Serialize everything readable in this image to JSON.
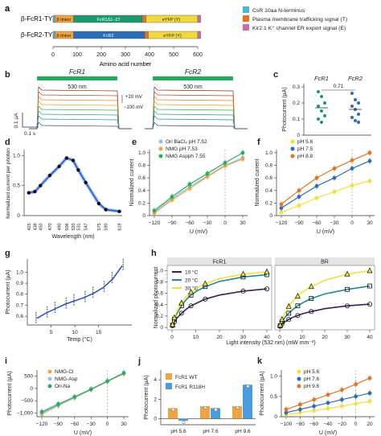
{
  "panels": {
    "a": {
      "letter": "a",
      "construct1": "β-FcR1-TYE",
      "construct2": "β-FcR2-TYE",
      "blocks1": [
        "β-linker",
        "FcR1Δ1–27",
        "eYFP (Y)"
      ],
      "blocks2": [
        "β-linker",
        "FcR2",
        "eYFP (Y)"
      ],
      "axis_ticks": [
        "0",
        "100",
        "200",
        "300",
        "400",
        "500",
        "600"
      ],
      "axis_label": "Amino acid number",
      "legend": [
        {
          "label": "CsR 10aa N-terminus",
          "color": "#4ab5d6"
        },
        {
          "label": "Plasma membrane trafficking signal (T)",
          "color": "#e8711f"
        },
        {
          "label": "Kir2.1 K⁺ channel ER export signal (E)",
          "color": "#d16aa9"
        }
      ],
      "colors": {
        "linker": "#f2a33a",
        "fcr1": "#1a9a6f",
        "fcr2": "#2a6eb8",
        "eyfp": "#f0d93c"
      }
    },
    "b": {
      "letter": "b",
      "title1": "FcR1",
      "title2": "FcR2",
      "light1": "530 nm",
      "light2": "530 nm",
      "scale_y": "0.1 µA",
      "scale_x": "0.1 s",
      "v_top": "+20 mV",
      "v_bottom": "−100 mV",
      "trace_colors": [
        "#7b2d26",
        "#c0392b",
        "#e67e22",
        "#f39c12",
        "#27ae60",
        "#16a085",
        "#2980b9",
        "#34495e"
      ]
    },
    "c": {
      "letter": "c",
      "title1": "FcR1",
      "title2": "FcR2",
      "ylabel": "Photocurrent (µA)",
      "pval": "0.71",
      "yticks": [
        "0",
        "0.1",
        "0.2",
        "0.3"
      ]
    },
    "d": {
      "letter": "d",
      "xlabel": "Wavelength (nm)",
      "ylabel": "Normalized current per photon",
      "yticks": [
        "0",
        "0.5",
        "1.0"
      ]
    },
    "e": {
      "letter": "e",
      "xlabel": "U (mV)",
      "ylabel": "Normalized current",
      "xticks": [
        "−120",
        "−90",
        "−60",
        "−30",
        "0",
        "30"
      ],
      "yticks": [
        "0",
        "0.2",
        "0.4",
        "0.6",
        "0.8",
        "1.0"
      ]
    },
    "f": {
      "letter": "f",
      "xlabel": "U (mV)",
      "ylabel": "Normalized current",
      "xticks": [
        "−120",
        "−90",
        "−60",
        "−30",
        "0",
        "30"
      ],
      "yticks": [
        "0",
        "0.2",
        "0.4",
        "0.6",
        "0.8",
        "1.0"
      ]
    },
    "g": {
      "letter": "g",
      "xlabel": "Temp (°C)",
      "ylabel": "Photocurrent (µA)",
      "xticks": [
        "5",
        "10",
        "15"
      ],
      "yticks": [
        "0.6",
        "0.7",
        "0.8",
        "0.9",
        "1.0"
      ]
    },
    "h": {
      "letter": "h",
      "title1": "FcR1",
      "title2": "BR",
      "xlabel": "Light intensity (532 nm) (mW mm⁻²)",
      "ylabel": "Normalized photocurrent",
      "xticks": [
        "0",
        "10",
        "20",
        "30",
        "40"
      ],
      "yticks": [
        "0",
        "0.2",
        "0.4",
        "0.6",
        "0.8",
        "1.0"
      ]
    },
    "i": {
      "letter": "i",
      "xlabel": "U (mV)",
      "ylabel": "Photocurrent (µA)",
      "xticks": [
        "−120",
        "−90",
        "−60",
        "−30",
        "0",
        "30"
      ],
      "yticks": [
        "−1,000",
        "−500",
        "0",
        "500"
      ]
    },
    "j": {
      "letter": "j",
      "ylabel": "Photocurrent (µA)",
      "yticks": [
        "0",
        "2",
        "4"
      ]
    },
    "k": {
      "letter": "k",
      "xlabel": "U (mV)",
      "ylabel": "Photocurrent (µA)",
      "xticks": [
        "−100",
        "−80",
        "−60",
        "−40",
        "−20",
        "0",
        "20"
      ],
      "yticks": [
        "0",
        "0.5",
        "1.0"
      ]
    }
  },
  "chart_data": [
    {
      "panel": "c",
      "type": "scatter",
      "categories": [
        "FcR1",
        "FcR2"
      ],
      "series": [
        {
          "name": "FcR1",
          "color": "#1a9a6f",
          "values": [
            0.27,
            0.24,
            0.2,
            0.18,
            0.15,
            0.12,
            0.1,
            0.08
          ],
          "mean": 0.17
        },
        {
          "name": "FcR2",
          "color": "#2a6eb8",
          "values": [
            0.26,
            0.22,
            0.2,
            0.18,
            0.16,
            0.13,
            0.11,
            0.09,
            0.08
          ],
          "mean": 0.16
        }
      ],
      "ylim": [
        0,
        0.32
      ]
    },
    {
      "panel": "d",
      "type": "line",
      "x": [
        425,
        438,
        450,
        470,
        490,
        506,
        520,
        531,
        547,
        575,
        590,
        619
      ],
      "y": [
        0.38,
        0.4,
        0.5,
        0.67,
        0.82,
        0.96,
        0.92,
        0.76,
        0.55,
        0.2,
        0.1,
        0.07
      ],
      "ylim": [
        0,
        1.1
      ],
      "color": "#1f4fd1"
    },
    {
      "panel": "e",
      "type": "line",
      "x": [
        -120,
        -90,
        -60,
        -30,
        0,
        30
      ],
      "series": [
        {
          "name": "Ori BaCl₂ pH 7.52",
          "color": "#8fc1e8",
          "values": [
            0.06,
            0.27,
            0.46,
            0.63,
            0.8,
            0.92
          ]
        },
        {
          "name": "NMG pH 7.53",
          "color": "#f0a340",
          "values": [
            0.04,
            0.25,
            0.43,
            0.62,
            0.79,
            0.9
          ]
        },
        {
          "name": "NMG Aspph 7.55",
          "color": "#27ae60",
          "values": [
            0.08,
            0.3,
            0.5,
            0.67,
            0.84,
            1.0
          ]
        }
      ],
      "ylim": [
        0,
        1.05
      ]
    },
    {
      "panel": "f",
      "type": "line",
      "x": [
        -120,
        -90,
        -60,
        -30,
        0,
        30
      ],
      "series": [
        {
          "name": "pH 5.6",
          "color": "#f3e03a",
          "values": [
            0.05,
            0.16,
            0.28,
            0.38,
            0.48,
            0.55
          ]
        },
        {
          "name": "pH 7.5",
          "color": "#2a6eb8",
          "values": [
            0.12,
            0.3,
            0.47,
            0.6,
            0.75,
            0.87
          ]
        },
        {
          "name": "pH 8.8",
          "color": "#e8711f",
          "values": [
            0.18,
            0.4,
            0.6,
            0.75,
            0.88,
            1.0
          ]
        }
      ],
      "ylim": [
        0,
        1.05
      ]
    },
    {
      "panel": "g",
      "type": "scatter",
      "x": [
        2,
        4,
        6,
        8,
        10,
        12,
        14,
        16,
        18,
        20
      ],
      "y": [
        0.58,
        0.63,
        0.67,
        0.71,
        0.74,
        0.77,
        0.81,
        0.86,
        0.94,
        1.06
      ],
      "ylim": [
        0.52,
        1.12
      ],
      "color": "#1f4fd1"
    },
    {
      "panel": "h",
      "type": "line",
      "x": [
        0.2,
        0.5,
        1,
        2,
        4,
        6,
        8,
        10,
        14,
        20,
        30,
        40
      ],
      "groups": [
        {
          "name": "FcR1",
          "series": [
            {
              "name": "10 °C",
              "color": "#3d1f5c",
              "values": [
                0.03,
                0.06,
                0.1,
                0.16,
                0.25,
                0.32,
                0.38,
                0.42,
                0.5,
                0.57,
                0.64,
                0.68
              ]
            },
            {
              "name": "20 °C",
              "color": "#1b8a9c",
              "values": [
                0.04,
                0.08,
                0.14,
                0.24,
                0.38,
                0.49,
                0.57,
                0.63,
                0.72,
                0.81,
                0.89,
                0.93
              ]
            },
            {
              "name": "30 °C",
              "color": "#f3e03a",
              "values": [
                0.05,
                0.1,
                0.17,
                0.28,
                0.43,
                0.54,
                0.62,
                0.68,
                0.77,
                0.86,
                0.94,
                0.98
              ]
            }
          ]
        },
        {
          "name": "BR",
          "series": [
            {
              "name": "10 °C",
              "color": "#3d1f5c",
              "values": [
                0.02,
                0.04,
                0.06,
                0.09,
                0.14,
                0.18,
                0.21,
                0.24,
                0.28,
                0.33,
                0.38,
                0.41
              ]
            },
            {
              "name": "20 °C",
              "color": "#1b8a9c",
              "values": [
                0.03,
                0.06,
                0.1,
                0.16,
                0.25,
                0.32,
                0.38,
                0.43,
                0.51,
                0.59,
                0.67,
                0.73
              ]
            },
            {
              "name": "30 °C",
              "color": "#f3e03a",
              "values": [
                0.04,
                0.08,
                0.14,
                0.23,
                0.37,
                0.47,
                0.55,
                0.62,
                0.72,
                0.83,
                0.94,
                1.0
              ]
            }
          ]
        }
      ],
      "ylim": [
        0,
        1.05
      ],
      "xlim": [
        0,
        40
      ]
    },
    {
      "panel": "i",
      "type": "line",
      "x": [
        -120,
        -90,
        -60,
        -30,
        0,
        30
      ],
      "series": [
        {
          "name": "NMG-Cl",
          "color": "#f0a340",
          "values": [
            -1050,
            -700,
            -380,
            -50,
            280,
            600
          ]
        },
        {
          "name": "NMG-Asp",
          "color": "#8fc1e8",
          "values": [
            -1000,
            -680,
            -360,
            -40,
            290,
            620
          ]
        },
        {
          "name": "Ori-Na",
          "color": "#27ae60",
          "values": [
            -950,
            -640,
            -340,
            -30,
            300,
            630
          ]
        }
      ],
      "ylim": [
        -1150,
        750
      ]
    },
    {
      "panel": "j",
      "type": "bar",
      "categories": [
        "pH 5.6",
        "pH 7.6",
        "pH 9.6"
      ],
      "series": [
        {
          "name": "FcR1 WT",
          "color": "#f0a340",
          "values": [
            1.1,
            1.3,
            1.3
          ]
        },
        {
          "name": "FcR1 R118H",
          "color": "#4a9ee0",
          "values": [
            -0.2,
            1.1,
            3.5
          ]
        }
      ],
      "ylim": [
        -0.6,
        5
      ]
    },
    {
      "panel": "k",
      "type": "line",
      "x": [
        -100,
        -80,
        -60,
        -40,
        -20,
        0,
        20
      ],
      "series": [
        {
          "name": "pH 5.6",
          "color": "#f3e03a",
          "values": [
            0.05,
            0.1,
            0.15,
            0.2,
            0.26,
            0.32,
            0.38
          ]
        },
        {
          "name": "pH 7.6",
          "color": "#2a6eb8",
          "values": [
            0.1,
            0.18,
            0.26,
            0.34,
            0.42,
            0.5,
            0.58
          ]
        },
        {
          "name": "pH 9.6",
          "color": "#e8711f",
          "values": [
            0.18,
            0.3,
            0.42,
            0.54,
            0.66,
            0.8,
            0.95
          ]
        }
      ],
      "ylim": [
        0,
        1.15
      ]
    }
  ]
}
